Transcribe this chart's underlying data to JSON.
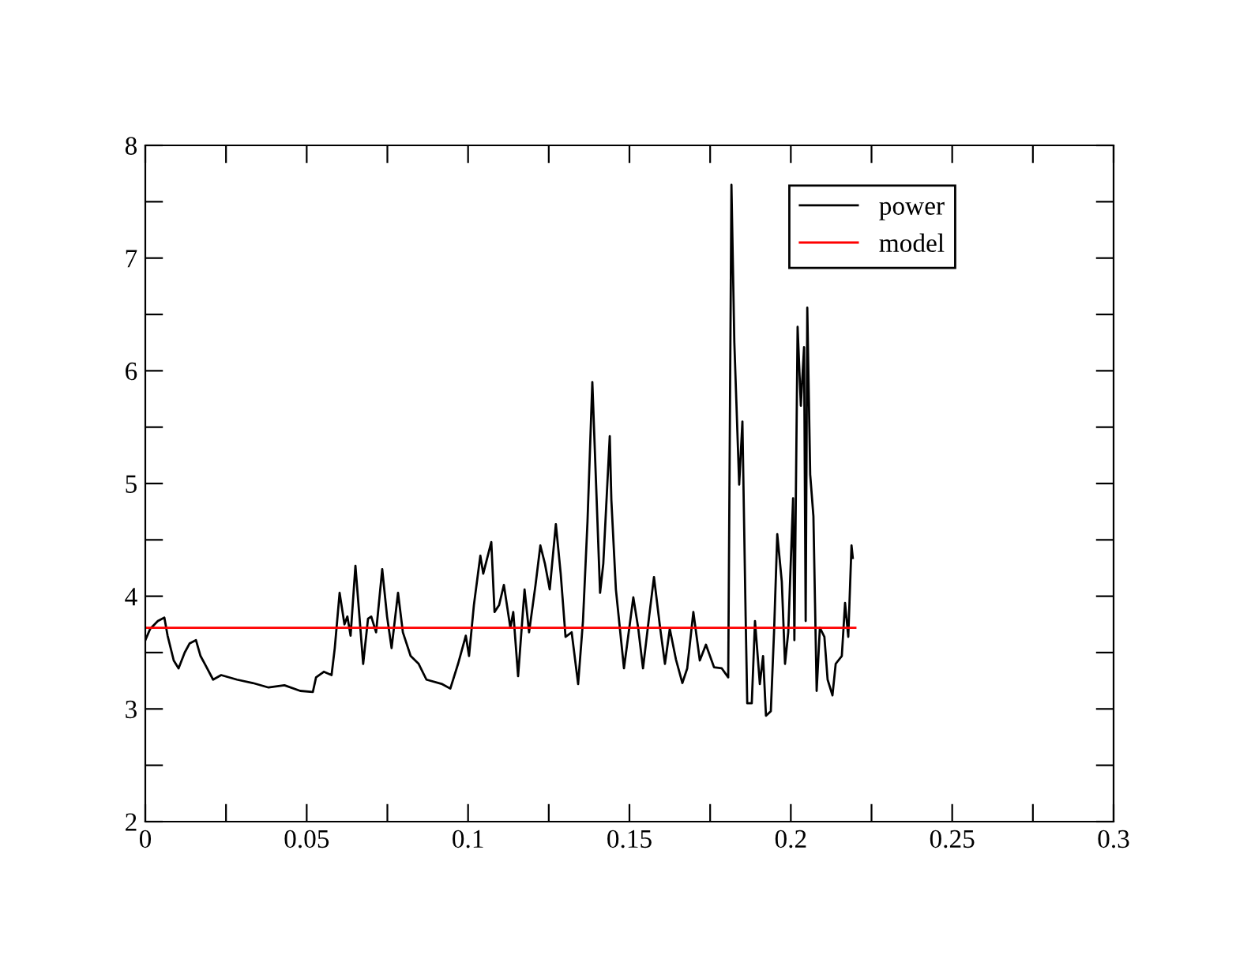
{
  "chart_data": {
    "type": "line",
    "xlim": [
      0,
      0.3
    ],
    "ylim": [
      2,
      8
    ],
    "xticks": [
      0,
      {
        "value": 0.025,
        "label": null
      },
      0.05,
      {
        "value": 0.075,
        "label": null
      },
      0.1,
      {
        "value": 0.125,
        "label": null
      },
      0.15,
      {
        "value": 0.175,
        "label": null
      },
      0.2,
      {
        "value": 0.225,
        "label": null
      },
      0.25,
      {
        "value": 0.275,
        "label": null
      },
      0.3
    ],
    "yticks": [
      2,
      {
        "value": 2.5,
        "label": null
      },
      3,
      {
        "value": 3.5,
        "label": null
      },
      4,
      {
        "value": 4.5,
        "label": null
      },
      5,
      {
        "value": 5.5,
        "label": null
      },
      6,
      {
        "value": 6.5,
        "label": null
      },
      7,
      {
        "value": 7.5,
        "label": null
      },
      8
    ],
    "grid": false,
    "legend": "top right",
    "marker": "none",
    "line_style": "solid",
    "series": [
      {
        "name": "power",
        "color": "#000000",
        "x": [
          0,
          0.0015,
          0.0039,
          0.0059,
          0.0069,
          0.0088,
          0.0103,
          0.0122,
          0.0137,
          0.0157,
          0.0171,
          0.0186,
          0.021,
          0.0235,
          0.0284,
          0.0333,
          0.0382,
          0.0431,
          0.048,
          0.0519,
          0.0529,
          0.0553,
          0.0577,
          0.0587,
          0.0602,
          0.0617,
          0.0626,
          0.0636,
          0.0651,
          0.0675,
          0.069,
          0.07,
          0.0715,
          0.0734,
          0.0749,
          0.0763,
          0.0783,
          0.0798,
          0.0822,
          0.0847,
          0.0871,
          0.092,
          0.0945,
          0.0969,
          0.0993,
          0.1003,
          0.1018,
          0.1038,
          0.1047,
          0.1072,
          0.1082,
          0.1096,
          0.1111,
          0.1131,
          0.114,
          0.1155,
          0.1175,
          0.1189,
          0.1209,
          0.1224,
          0.1238,
          0.1253,
          0.1272,
          0.1287,
          0.1302,
          0.1321,
          0.1341,
          0.1356,
          0.137,
          0.1385,
          0.1409,
          0.1419,
          0.1439,
          0.1444,
          0.1458,
          0.1483,
          0.1512,
          0.1527,
          0.1542,
          0.1561,
          0.1576,
          0.1595,
          0.161,
          0.1625,
          0.1644,
          0.1664,
          0.1679,
          0.1698,
          0.1718,
          0.1737,
          0.1762,
          0.1786,
          0.1806,
          0.1816,
          0.1825,
          0.184,
          0.185,
          0.186,
          0.1865,
          0.1879,
          0.1889,
          0.1904,
          0.1914,
          0.1923,
          0.1938,
          0.1948,
          0.1958,
          0.1972,
          0.1982,
          0.1992,
          0.2007,
          0.2011,
          0.2021,
          0.2031,
          0.2041,
          0.2046,
          0.2051,
          0.206,
          0.207,
          0.208,
          0.209,
          0.2104,
          0.2114,
          0.2129,
          0.2139,
          0.2158,
          0.2168,
          0.2178,
          0.2188,
          0.2192
        ],
        "values": [
          3.61,
          3.71,
          3.78,
          3.81,
          3.65,
          3.43,
          3.36,
          3.5,
          3.58,
          3.61,
          3.47,
          3.39,
          3.26,
          3.3,
          3.26,
          3.23,
          3.19,
          3.21,
          3.16,
          3.15,
          3.28,
          3.33,
          3.3,
          3.54,
          4.03,
          3.75,
          3.82,
          3.65,
          4.27,
          3.4,
          3.8,
          3.82,
          3.68,
          4.24,
          3.82,
          3.54,
          4.03,
          3.68,
          3.47,
          3.4,
          3.26,
          3.22,
          3.18,
          3.4,
          3.65,
          3.47,
          3.92,
          4.36,
          4.2,
          4.48,
          3.86,
          3.92,
          4.1,
          3.72,
          3.86,
          3.29,
          4.06,
          3.68,
          4.1,
          4.45,
          4.29,
          4.06,
          4.64,
          4.2,
          3.64,
          3.68,
          3.22,
          3.78,
          4.66,
          5.9,
          4.03,
          4.29,
          5.42,
          4.85,
          4.06,
          3.36,
          3.99,
          3.72,
          3.36,
          3.82,
          4.17,
          3.72,
          3.4,
          3.71,
          3.44,
          3.23,
          3.36,
          3.86,
          3.43,
          3.57,
          3.37,
          3.36,
          3.28,
          7.65,
          6.25,
          4.99,
          5.55,
          3.82,
          3.05,
          3.05,
          3.78,
          3.22,
          3.47,
          2.94,
          2.98,
          3.68,
          4.55,
          4.13,
          3.4,
          3.68,
          4.87,
          3.61,
          6.39,
          5.69,
          6.21,
          3.78,
          6.56,
          5.08,
          4.71,
          3.16,
          3.72,
          3.64,
          3.26,
          3.12,
          3.4,
          3.47,
          3.94,
          3.64,
          4.45,
          4.34
        ]
      },
      {
        "name": "model",
        "color": "#ff0000",
        "x": [
          0,
          0.22
        ],
        "values": [
          3.72,
          3.72
        ]
      }
    ]
  }
}
